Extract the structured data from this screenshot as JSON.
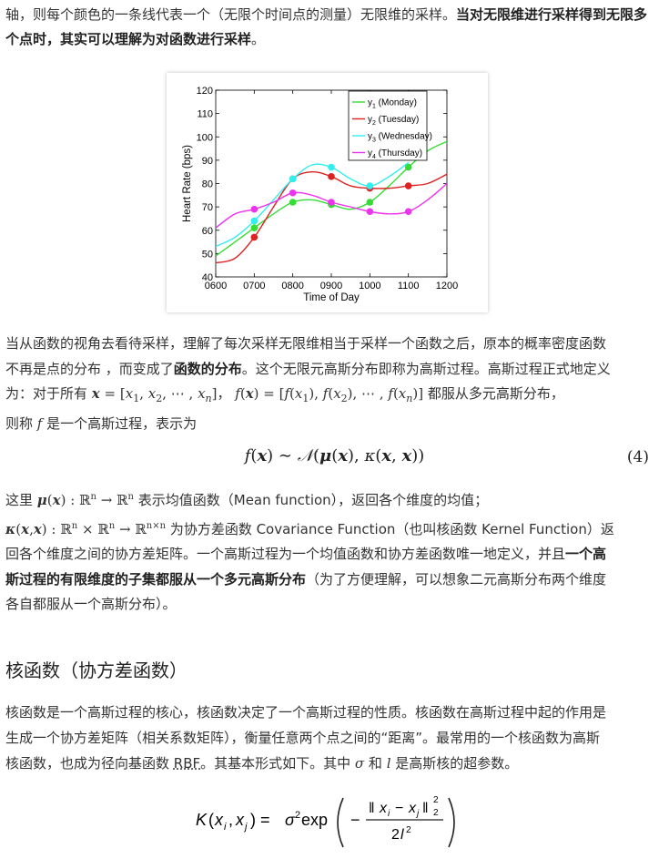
{
  "para1": {
    "normal": "轴，则每个颜色的一条线代表一个（无限个时间点的测量）无限维的采样。",
    "bold": "当对无限维进行采样得到无限多个点时，其实可以理解为对函数进行采样",
    "end": "。"
  },
  "chart_data": {
    "type": "line",
    "xlabel": "Time of Day",
    "ylabel": "Heart Rate (bps)",
    "x_ticks": [
      "0600",
      "0700",
      "0800",
      "0900",
      "1000",
      "1100",
      "1200"
    ],
    "y_ticks": [
      "40",
      "50",
      "60",
      "70",
      "80",
      "90",
      "100",
      "110",
      "120"
    ],
    "xlim": [
      600,
      1200
    ],
    "ylim": [
      40,
      120
    ],
    "legend_position": "top-right",
    "series": [
      {
        "name_base": "y",
        "name_sub": "1",
        "name_rest": " (Monday)",
        "color": "#33dd33",
        "x": [
          700,
          800,
          900,
          1000,
          1100
        ],
        "y": [
          61,
          72,
          71,
          72,
          87
        ],
        "curve": [
          [
            600,
            49
          ],
          [
            650,
            55
          ],
          [
            700,
            61
          ],
          [
            750,
            67
          ],
          [
            800,
            72
          ],
          [
            850,
            73
          ],
          [
            900,
            71
          ],
          [
            950,
            69
          ],
          [
            1000,
            72
          ],
          [
            1050,
            79
          ],
          [
            1100,
            87
          ],
          [
            1150,
            94
          ],
          [
            1200,
            98
          ]
        ]
      },
      {
        "name_base": "y",
        "name_sub": "2",
        "name_rest": " (Tuesday)",
        "color": "#dd2222",
        "x": [
          700,
          800,
          900,
          1000,
          1100
        ],
        "y": [
          57,
          82,
          83,
          78,
          79
        ],
        "curve": [
          [
            600,
            46
          ],
          [
            650,
            48
          ],
          [
            700,
            57
          ],
          [
            750,
            70
          ],
          [
            800,
            82
          ],
          [
            850,
            85
          ],
          [
            900,
            83
          ],
          [
            950,
            79
          ],
          [
            1000,
            78
          ],
          [
            1050,
            78
          ],
          [
            1100,
            79
          ],
          [
            1150,
            80
          ],
          [
            1200,
            84
          ]
        ]
      },
      {
        "name_base": "y",
        "name_sub": "3",
        "name_rest": " (Wednesday)",
        "color": "#33eeee",
        "x": [
          700,
          800,
          900,
          1000
        ],
        "y": [
          64,
          82,
          87,
          79
        ],
        "curve": [
          [
            600,
            53
          ],
          [
            650,
            57
          ],
          [
            700,
            64
          ],
          [
            750,
            73
          ],
          [
            800,
            82
          ],
          [
            850,
            88
          ],
          [
            900,
            87
          ],
          [
            950,
            82
          ],
          [
            1000,
            79
          ],
          [
            1050,
            83
          ],
          [
            1100,
            89
          ]
        ]
      },
      {
        "name_base": "y",
        "name_sub": "4",
        "name_rest": " (Thursday)",
        "color": "#ee33ee",
        "x": [
          700,
          800,
          900,
          1000,
          1100
        ],
        "y": [
          69,
          76,
          72,
          68,
          68
        ],
        "curve": [
          [
            600,
            61
          ],
          [
            650,
            67
          ],
          [
            700,
            69
          ],
          [
            750,
            72
          ],
          [
            800,
            76
          ],
          [
            850,
            75
          ],
          [
            900,
            72
          ],
          [
            950,
            70
          ],
          [
            1000,
            68
          ],
          [
            1050,
            67
          ],
          [
            1100,
            68
          ],
          [
            1150,
            73
          ],
          [
            1200,
            80
          ]
        ]
      }
    ]
  },
  "para2": {
    "line1": "当从函数的视角去看待采样，理解了每次采样无限维相当于采样一个函数之后，原本的概率密度函数",
    "line2_a": "不再是点的分布 ，而变成了",
    "line2_bold": "函数的分布",
    "line2_b": "。这个无限元高斯分布即称为高斯过程。高斯过程正式地定义",
    "line3_a": "为：对于所有 ",
    "line3_b": "， ",
    "line3_c": " 都服从多元高斯分布，",
    "line4_a": "则称 ",
    "line4_b": " 是一个高斯过程，表示为"
  },
  "eq4": {
    "number": "(4)"
  },
  "para3": {
    "line1_a": "这里 ",
    "line1_b": " 表示均值函数（Mean function），返回各个维度的均值；",
    "line2_b": " 为协方差函数 Covariance Function（也叫核函数 Kernel Function）返",
    "line3": "回各个维度之间的协方差矩阵。一个高斯过程为一个均值函数和协方差函数唯一地定义，并且",
    "line3_bold": "一个高",
    "line4_bold": "斯过程的有限维度的子集都服从一个多元高斯分布",
    "line4_rest": "（为了方便理解，可以想象二元高斯分布两个维度",
    "line5": "各自都服从一个高斯分布）。"
  },
  "section_title": "核函数（协方差函数）",
  "para4": {
    "line1": "核函数是一个高斯过程的核心，核函数决定了一个高斯过程的性质。核函数在高斯过程中起的作用是",
    "line2": "生成一个协方差矩阵（相关系数矩阵），衡量任意两个点之间的“距离”。最常用的一个核函数为高斯",
    "line3_a": "核函数，也成为径向基函数 ",
    "line3_link": "RBF",
    "line3_b": "。其基本形式如下。其中 ",
    "line3_c": " 和 ",
    "line3_d": " 是高斯核的超参数。"
  }
}
